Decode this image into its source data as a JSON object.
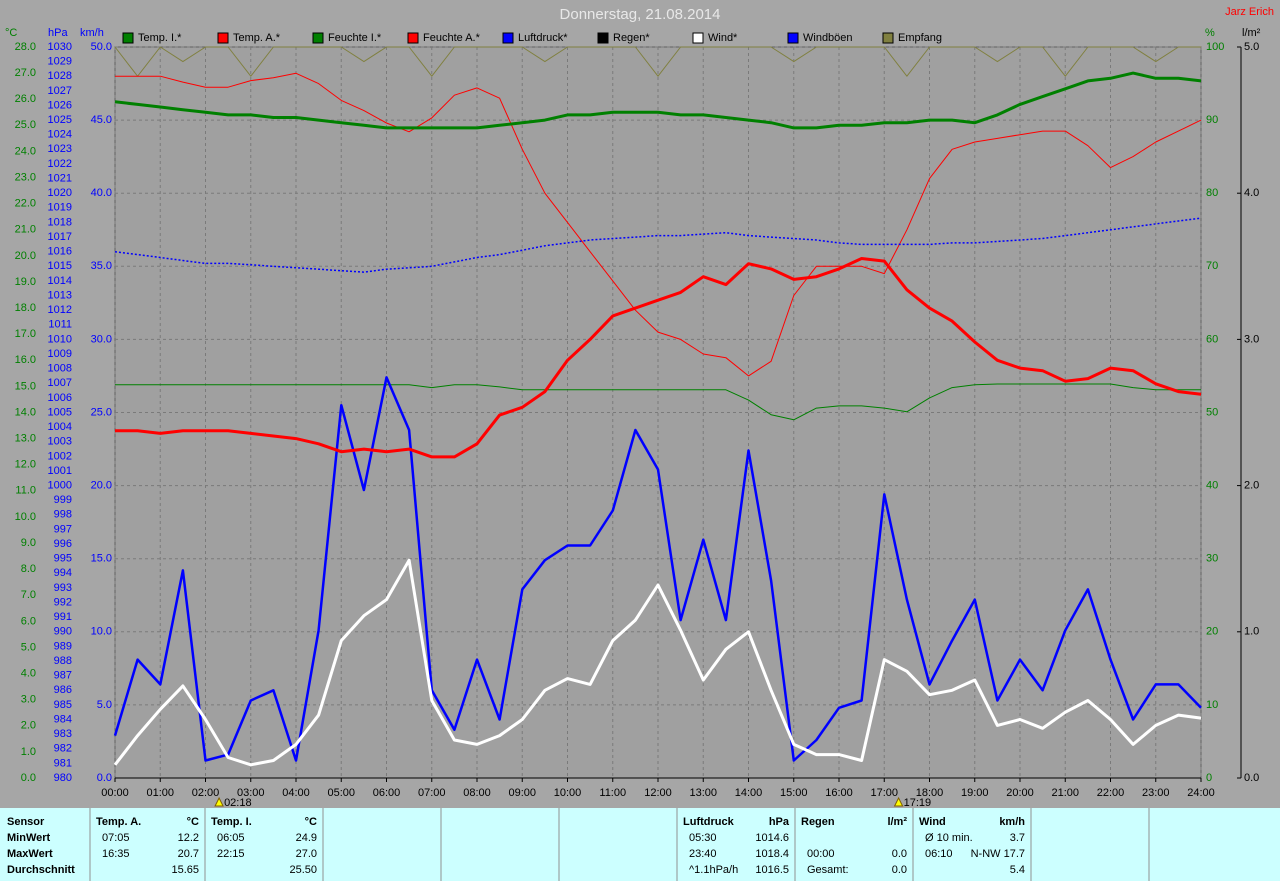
{
  "chart_data": {
    "type": "line",
    "title": "Donnerstag, 21.08.2014",
    "author": "Jarz Erich",
    "x": [
      0,
      0.5,
      1,
      1.5,
      2,
      2.5,
      3,
      3.5,
      4,
      4.5,
      5,
      5.5,
      6,
      6.5,
      7,
      7.5,
      8,
      8.5,
      9,
      9.5,
      10,
      10.5,
      11,
      11.5,
      12,
      12.5,
      13,
      13.5,
      14,
      14.5,
      15,
      15.5,
      16,
      16.5,
      17,
      17.5,
      18,
      18.5,
      19,
      19.5,
      20,
      20.5,
      21,
      21.5,
      22,
      22.5,
      23,
      23.5,
      24
    ],
    "xlim": [
      0,
      24
    ],
    "xticks": [
      {
        "value": 0,
        "label": "00:00"
      },
      {
        "value": 1,
        "label": "01:00"
      },
      {
        "value": 2,
        "label": "02:00"
      },
      {
        "value": 3,
        "label": "03:00"
      },
      {
        "value": 4,
        "label": "04:00"
      },
      {
        "value": 5,
        "label": "05:00"
      },
      {
        "value": 6,
        "label": "06:00"
      },
      {
        "value": 7,
        "label": "07:00"
      },
      {
        "value": 8,
        "label": "08:00"
      },
      {
        "value": 9,
        "label": "09:00"
      },
      {
        "value": 10,
        "label": "10:00"
      },
      {
        "value": 11,
        "label": "11:00"
      },
      {
        "value": 12,
        "label": "12:00"
      },
      {
        "value": 13,
        "label": "13:00"
      },
      {
        "value": 14,
        "label": "14:00"
      },
      {
        "value": 15,
        "label": "15:00"
      },
      {
        "value": 16,
        "label": "16:00"
      },
      {
        "value": 17,
        "label": "17:00"
      },
      {
        "value": 18,
        "label": "18:00"
      },
      {
        "value": 19,
        "label": "19:00"
      },
      {
        "value": 20,
        "label": "20:00"
      },
      {
        "value": 21,
        "label": "21:00"
      },
      {
        "value": 22,
        "label": "22:00"
      },
      {
        "value": 23,
        "label": "23:00"
      },
      {
        "value": 24,
        "label": "24:00"
      }
    ],
    "grid": true,
    "grid_axis": 2,
    "axes": [
      {
        "label": "°C",
        "color": "#008000",
        "lim": [
          0,
          28
        ],
        "ticks": [
          {
            "value": 0,
            "label": "0.0"
          },
          {
            "value": 1,
            "label": "1.0"
          },
          {
            "value": 2,
            "label": "2.0"
          },
          {
            "value": 3,
            "label": "3.0"
          },
          {
            "value": 4,
            "label": "4.0"
          },
          {
            "value": 5,
            "label": "5.0"
          },
          {
            "value": 6,
            "label": "6.0"
          },
          {
            "value": 7,
            "label": "7.0"
          },
          {
            "value": 8,
            "label": "8.0"
          },
          {
            "value": 9,
            "label": "9.0"
          },
          {
            "value": 10,
            "label": "10.0"
          },
          {
            "value": 11,
            "label": "11.0"
          },
          {
            "value": 12,
            "label": "12.0"
          },
          {
            "value": 13,
            "label": "13.0"
          },
          {
            "value": 14,
            "label": "14.0"
          },
          {
            "value": 15,
            "label": "15.0"
          },
          {
            "value": 16,
            "label": "16.0"
          },
          {
            "value": 17,
            "label": "17.0"
          },
          {
            "value": 18,
            "label": "18.0"
          },
          {
            "value": 19,
            "label": "19.0"
          },
          {
            "value": 20,
            "label": "20.0"
          },
          {
            "value": 21,
            "label": "21.0"
          },
          {
            "value": 22,
            "label": "22.0"
          },
          {
            "value": 23,
            "label": "23.0"
          },
          {
            "value": 24,
            "label": "24.0"
          },
          {
            "value": 25,
            "label": "25.0"
          },
          {
            "value": 26,
            "label": "26.0"
          },
          {
            "value": 27,
            "label": "27.0"
          },
          {
            "value": 28,
            "label": "28.0"
          }
        ]
      },
      {
        "label": "hPa",
        "color": "#0000ff",
        "lim": [
          980,
          1030
        ],
        "ticks": [
          980,
          981,
          982,
          983,
          984,
          985,
          986,
          987,
          988,
          989,
          990,
          991,
          992,
          993,
          994,
          995,
          996,
          997,
          998,
          999,
          1000,
          1001,
          1002,
          1003,
          1004,
          1005,
          1006,
          1007,
          1008,
          1009,
          1010,
          1011,
          1012,
          1013,
          1014,
          1015,
          1016,
          1017,
          1018,
          1019,
          1020,
          1021,
          1022,
          1023,
          1024,
          1025,
          1026,
          1027,
          1028,
          1029,
          1030
        ]
      },
      {
        "label": "km/h",
        "color": "#0000ff",
        "lim": [
          0,
          50
        ],
        "ticks": [
          {
            "value": 0,
            "label": "0.0"
          },
          {
            "value": 5,
            "label": "5.0"
          },
          {
            "value": 10,
            "label": "10.0"
          },
          {
            "value": 15,
            "label": "15.0"
          },
          {
            "value": 20,
            "label": "20.0"
          },
          {
            "value": 25,
            "label": "25.0"
          },
          {
            "value": 30,
            "label": "30.0"
          },
          {
            "value": 35,
            "label": "35.0"
          },
          {
            "value": 40,
            "label": "40.0"
          },
          {
            "value": 45,
            "label": "45.0"
          },
          {
            "value": 50,
            "label": "50.0"
          }
        ]
      },
      {
        "label": "%",
        "color": "#008000",
        "lim": [
          0,
          100
        ],
        "ticks": [
          0,
          10,
          20,
          30,
          40,
          50,
          60,
          70,
          80,
          90,
          100
        ]
      },
      {
        "label": "l/m²",
        "color": "#000000",
        "lim": [
          0,
          5
        ],
        "ticks": [
          {
            "value": 0,
            "label": "0.0"
          },
          {
            "value": 1,
            "label": "1.0"
          },
          {
            "value": 2,
            "label": "2.0"
          },
          {
            "value": 3,
            "label": "3.0"
          },
          {
            "value": 4,
            "label": "4.0"
          },
          {
            "value": 5,
            "label": "5.0"
          }
        ]
      }
    ],
    "series": [
      {
        "name": "Temp. I.*",
        "color": "#008000",
        "axis": 0,
        "values": [
          25.9,
          25.8,
          25.7,
          25.6,
          25.5,
          25.4,
          25.4,
          25.3,
          25.3,
          25.2,
          25.1,
          25.0,
          24.9,
          24.9,
          24.9,
          24.9,
          24.9,
          25.0,
          25.1,
          25.2,
          25.4,
          25.4,
          25.5,
          25.5,
          25.5,
          25.4,
          25.4,
          25.3,
          25.2,
          25.1,
          24.9,
          24.9,
          25.0,
          25.0,
          25.1,
          25.1,
          25.2,
          25.2,
          25.1,
          25.4,
          25.8,
          26.1,
          26.4,
          26.7,
          26.8,
          27.0,
          26.8,
          26.8,
          26.7
        ]
      },
      {
        "name": "Temp. A.*",
        "color": "#ff0000",
        "axis": 0,
        "values": [
          13.3,
          13.3,
          13.2,
          13.3,
          13.3,
          13.3,
          13.2,
          13.1,
          13.0,
          12.8,
          12.5,
          12.6,
          12.5,
          12.6,
          12.3,
          12.3,
          12.8,
          13.9,
          14.2,
          14.8,
          16.0,
          16.8,
          17.7,
          18.0,
          18.3,
          18.6,
          19.2,
          18.9,
          19.7,
          19.5,
          19.1,
          19.2,
          19.5,
          19.9,
          19.8,
          18.7,
          18.0,
          17.5,
          16.7,
          16.0,
          15.7,
          15.6,
          15.2,
          15.3,
          15.7,
          15.6,
          15.1,
          14.8,
          14.7
        ]
      },
      {
        "name": "Feuchte I.*",
        "color": "#008000",
        "axis": 3,
        "values": [
          53.8,
          53.8,
          53.8,
          53.8,
          53.8,
          53.8,
          53.8,
          53.8,
          53.8,
          53.8,
          53.8,
          53.8,
          53.8,
          53.8,
          53.4,
          53.8,
          53.8,
          53.5,
          53.1,
          53.1,
          53.1,
          53.1,
          53.1,
          53.1,
          53.1,
          53.1,
          53.1,
          53.1,
          51.7,
          49.7,
          49.0,
          50.6,
          50.9,
          50.9,
          50.6,
          50.1,
          52.0,
          53.4,
          53.8,
          53.9,
          53.9,
          53.9,
          53.9,
          53.9,
          53.9,
          53.4,
          53.1,
          53.1,
          53.1
        ]
      },
      {
        "name": "Feuchte A.*",
        "color": "#ff0000",
        "axis": 3,
        "values": [
          96.0,
          96.0,
          96.0,
          95.2,
          94.5,
          94.5,
          95.4,
          95.8,
          96.4,
          95.0,
          92.7,
          91.3,
          89.6,
          88.4,
          90.3,
          93.4,
          94.4,
          93.0,
          86.0,
          80.0,
          76.0,
          72.0,
          68.0,
          64.0,
          61.0,
          60.0,
          58.0,
          57.5,
          55.0,
          57.0,
          66.0,
          70.0,
          70.0,
          70.0,
          69.0,
          75.0,
          82.0,
          86.0,
          87.0,
          87.5,
          88.0,
          88.5,
          88.5,
          86.5,
          83.5,
          85.0,
          87.0,
          88.5,
          90.0
        ]
      },
      {
        "name": "Luftdruck*",
        "color": "#0000ff",
        "axis": 1,
        "values": [
          1016.0,
          1015.8,
          1015.6,
          1015.4,
          1015.2,
          1015.2,
          1015.1,
          1015.0,
          1014.9,
          1014.8,
          1014.7,
          1014.6,
          1014.8,
          1014.9,
          1015.0,
          1015.3,
          1015.6,
          1015.8,
          1016.1,
          1016.4,
          1016.6,
          1016.8,
          1016.9,
          1017.0,
          1017.1,
          1017.1,
          1017.2,
          1017.3,
          1017.1,
          1017.0,
          1016.9,
          1016.8,
          1016.6,
          1016.5,
          1016.5,
          1016.5,
          1016.5,
          1016.6,
          1016.6,
          1016.7,
          1016.8,
          1016.9,
          1017.1,
          1017.3,
          1017.5,
          1017.7,
          1017.9,
          1018.1,
          1018.3
        ]
      },
      {
        "name": "Regen*",
        "color": "#000000",
        "axis": 4,
        "values": [
          0,
          0,
          0,
          0,
          0,
          0,
          0,
          0,
          0,
          0,
          0,
          0,
          0,
          0,
          0,
          0,
          0,
          0,
          0,
          0,
          0,
          0,
          0,
          0,
          0,
          0,
          0,
          0,
          0,
          0,
          0,
          0,
          0,
          0,
          0,
          0,
          0,
          0,
          0,
          0,
          0,
          0,
          0,
          0,
          0,
          0,
          0,
          0,
          0
        ]
      },
      {
        "name": "Wind*",
        "color": "#ffffff",
        "axis": 2,
        "values": [
          0.9,
          2.9,
          4.7,
          6.3,
          4.0,
          1.4,
          0.9,
          1.2,
          2.3,
          4.3,
          9.4,
          11.1,
          12.2,
          14.9,
          5.3,
          2.6,
          2.3,
          2.9,
          4.0,
          6.0,
          6.8,
          6.4,
          9.4,
          10.8,
          13.2,
          10.1,
          6.7,
          8.8,
          10.0,
          6.0,
          2.3,
          1.6,
          1.6,
          1.2,
          8.1,
          7.3,
          5.7,
          6.0,
          6.7,
          3.6,
          4.0,
          3.4,
          4.5,
          5.3,
          4.0,
          2.3,
          3.6,
          4.3,
          4.1
        ]
      },
      {
        "name": "Windböen",
        "color": "#0000ff",
        "axis": 2,
        "values": [
          2.9,
          8.1,
          6.4,
          14.2,
          1.2,
          1.6,
          5.3,
          6.0,
          1.2,
          10.1,
          25.5,
          19.7,
          27.4,
          23.8,
          6.0,
          3.3,
          8.1,
          4.0,
          12.9,
          14.9,
          15.9,
          15.9,
          18.3,
          23.8,
          21.1,
          10.8,
          16.3,
          10.8,
          22.4,
          13.5,
          1.2,
          2.6,
          4.8,
          5.3,
          19.4,
          12.2,
          6.4,
          9.4,
          12.2,
          5.3,
          8.1,
          6.0,
          10.1,
          12.9,
          8.1,
          4.0,
          6.4,
          6.4,
          4.8
        ]
      },
      {
        "name": "Empfang",
        "color": "#808040",
        "axis": 3,
        "values": [
          100,
          96,
          100,
          98,
          100,
          100,
          96,
          100,
          100,
          100,
          100,
          98,
          100,
          100,
          96,
          100,
          100,
          100,
          100,
          98,
          100,
          100,
          100,
          100,
          96,
          100,
          100,
          100,
          100,
          100,
          98,
          100,
          100,
          100,
          100,
          96,
          100,
          100,
          100,
          98,
          100,
          100,
          96,
          100,
          100,
          100,
          98,
          100,
          100
        ]
      }
    ],
    "markers": [
      {
        "x": 2.3,
        "label": "02:18"
      },
      {
        "x": 17.3167,
        "label": "17:19"
      }
    ]
  },
  "stats": {
    "row_labels": [
      "Sensor",
      "MinWert",
      "MaxWert",
      "Durchschnitt"
    ],
    "columns": [
      {
        "name": "Temp. A.",
        "unit": "°C",
        "rows": [
          [
            "07:05",
            "12.2"
          ],
          [
            "16:35",
            "20.7"
          ],
          [
            null,
            "15.65"
          ]
        ]
      },
      {
        "name": "Temp. I.",
        "unit": "°C",
        "rows": [
          [
            "06:05",
            "24.9"
          ],
          [
            "22:15",
            "27.0"
          ],
          [
            null,
            "25.50"
          ]
        ]
      },
      {
        "name": "Luftdruck",
        "unit": "hPa",
        "rows": [
          [
            "05:30",
            "1014.6"
          ],
          [
            "23:40",
            "1018.4"
          ],
          [
            "^1.1hPa/h",
            "1016.5"
          ]
        ]
      },
      {
        "name": "Regen",
        "unit": "l/m²",
        "rows": [
          null,
          [
            "00:00",
            "0.0"
          ],
          [
            "Gesamt:",
            "0.0"
          ]
        ]
      },
      {
        "name": "Wind",
        "unit": "km/h",
        "rows": [
          [
            "Ø 10 min.",
            "3.7"
          ],
          [
            "06:10",
            "N-NW 17.7"
          ],
          [
            null,
            "5.4"
          ]
        ]
      }
    ]
  }
}
